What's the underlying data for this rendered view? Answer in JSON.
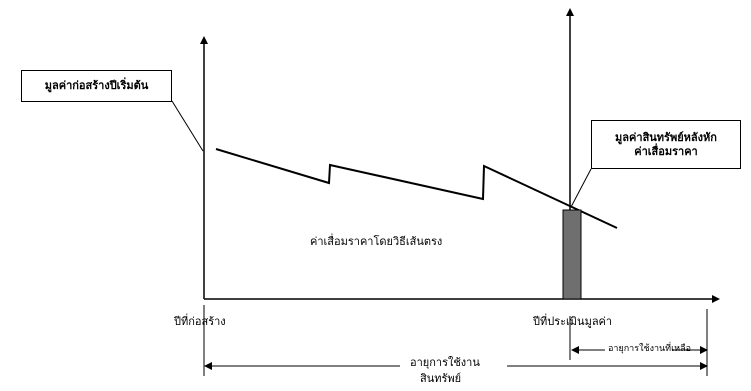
{
  "labels": {
    "initial_cost": "มูลค่าก่อสร้างปีเริ่มต้น",
    "asset_value_line1": "มูลค่าสินทรัพย์หลังหัก",
    "asset_value_line2": "ค่าเสื่อมราคา",
    "straight_line_depreciation": "ค่าเสื่อมราคาโดยวิธีเส้นตรง",
    "construction_year": "ปีที่ก่อสร้าง",
    "valuation_year": "ปีที่ประเมินมูลค่า",
    "remaining_life": "อายุการใช้งานที่เหลือ",
    "asset_life_line1": "อายุการใช้งาน",
    "asset_life_line2": "สินทรัพย์"
  },
  "colors": {
    "line": "#000000",
    "bar_fill": "#6f6f6f",
    "background": "#ffffff"
  }
}
